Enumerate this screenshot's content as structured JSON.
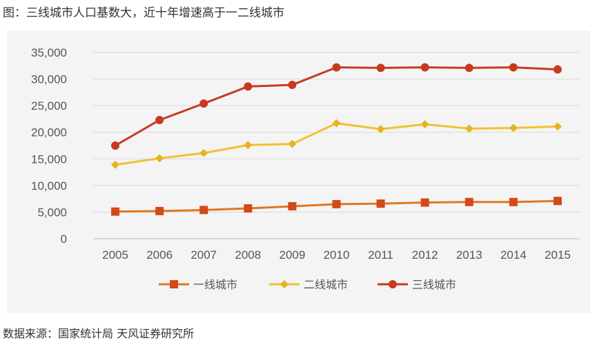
{
  "figure_title": "图：三线城市人口基数大，近十年增速高于一二线城市",
  "source_note": "数据来源：国家统计局 天风证券研究所",
  "chart_data": {
    "type": "line",
    "x": [
      "2005",
      "2006",
      "2007",
      "2008",
      "2009",
      "2010",
      "2011",
      "2012",
      "2013",
      "2014",
      "2015"
    ],
    "ylim": [
      0,
      35000
    ],
    "yticks": [
      0,
      5000,
      10000,
      15000,
      20000,
      25000,
      30000,
      35000
    ],
    "ytick_labels": [
      "0",
      "5,000",
      "10,000",
      "15,000",
      "20,000",
      "25,000",
      "30,000",
      "35,000"
    ],
    "grid": true,
    "legend_position": "bottom",
    "series": [
      {
        "name": "一线城市",
        "marker": "square",
        "color": "#e0761e",
        "marker_color": "#d2491a",
        "values": [
          5100,
          5200,
          5400,
          5700,
          6100,
          6500,
          6600,
          6800,
          6900,
          6900,
          7100
        ]
      },
      {
        "name": "二线城市",
        "marker": "diamond",
        "color": "#f2c12e",
        "marker_color": "#e6b41f",
        "values": [
          13900,
          15100,
          16100,
          17600,
          17800,
          21700,
          20600,
          21500,
          20700,
          20800,
          21100
        ]
      },
      {
        "name": "三线城市",
        "marker": "circle",
        "color": "#c8391e",
        "marker_color": "#c8391e",
        "values": [
          17500,
          22300,
          25400,
          28600,
          28900,
          32200,
          32100,
          32200,
          32100,
          32200,
          31800
        ]
      }
    ]
  }
}
